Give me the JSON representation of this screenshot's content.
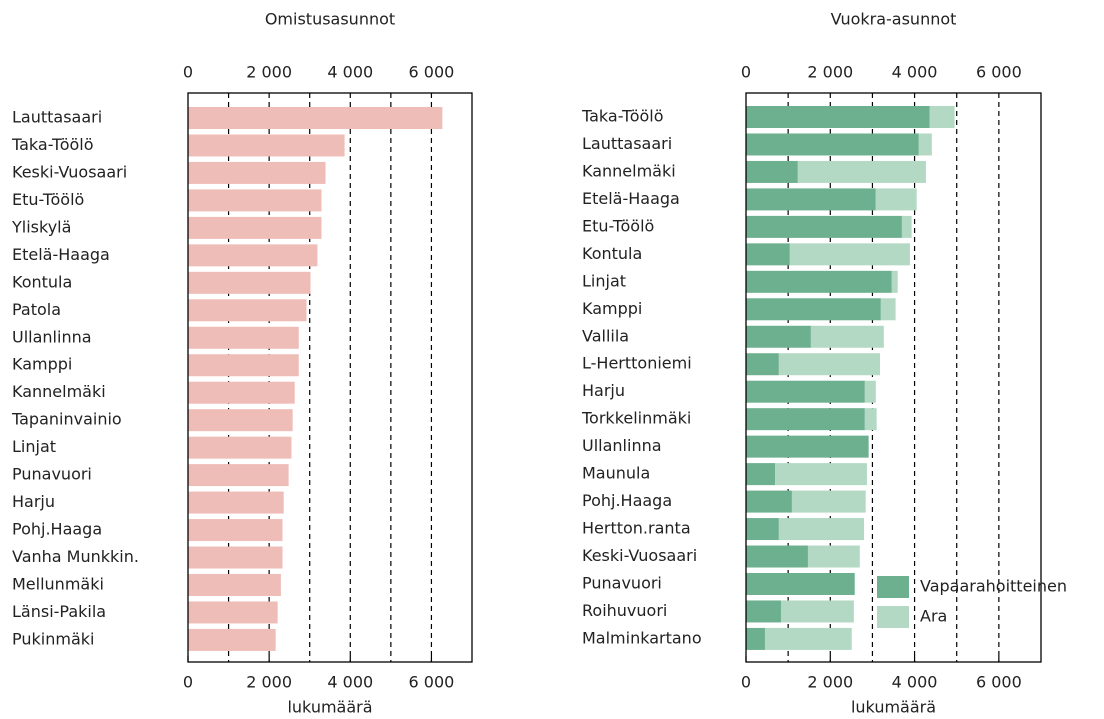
{
  "chart_data": [
    {
      "type": "bar",
      "orientation": "horizontal",
      "title": "Omistusasunnot",
      "xlabel": "lukumäärä",
      "categories": [
        "Lauttasaari",
        "Taka-Töölö",
        "Keski-Vuosaari",
        "Etu-Töölö",
        "Yliskylä",
        "Etelä-Haaga",
        "Kontula",
        "Patola",
        "Ullanlinna",
        "Kamppi",
        "Kannelmäki",
        "Tapaninvainio",
        "Linjat",
        "Punavuori",
        "Harju",
        "Pohj.Haaga",
        "Vanha Munkkin.",
        "Mellunmäki",
        "Länsi-Pakila",
        "Pukinmäki"
      ],
      "values": [
        6270,
        3860,
        3390,
        3290,
        3290,
        3190,
        3020,
        2920,
        2730,
        2730,
        2630,
        2580,
        2550,
        2480,
        2360,
        2330,
        2330,
        2290,
        2210,
        2160
      ],
      "color": "#efbdb8",
      "xlim": [
        0,
        7000
      ],
      "xticks": [
        0,
        {
          "value": 2000,
          "label": "2 000"
        },
        {
          "value": 4000,
          "label": "4 000"
        },
        {
          "value": 6000,
          "label": "6 000"
        }
      ],
      "minor_xticks": [
        1000,
        3000,
        5000
      ],
      "grid": true
    },
    {
      "type": "bar",
      "orientation": "horizontal",
      "stacked": true,
      "title": "Vuokra-asunnot",
      "xlabel": "lukumäärä",
      "categories": [
        "Taka-Töölö",
        "Lauttasaari",
        "Kannelmäki",
        "Etelä-Haaga",
        "Etu-Töölö",
        "Kontula",
        "Linjat",
        "Kamppi",
        "Vallila",
        "L-Herttoniemi",
        "Harju",
        "Torkkelinmäki",
        "Ullanlinna",
        "Maunula",
        "Pohj.Haaga",
        "Hertton.ranta",
        "Keski-Vuosaari",
        "Punavuori",
        "Roihuvuori",
        "Malminkartano"
      ],
      "series": [
        {
          "name": "Vapaarahoitteinen",
          "color": "#6db08f",
          "values": [
            4360,
            4100,
            1230,
            3080,
            3700,
            1040,
            3460,
            3200,
            1540,
            780,
            2820,
            2820,
            2910,
            690,
            1090,
            780,
            1470,
            2580,
            830,
            450
          ]
        },
        {
          "name": "Ara",
          "color": "#b3d9c5",
          "values": [
            590,
            310,
            3040,
            970,
            230,
            2850,
            140,
            350,
            1730,
            2400,
            260,
            280,
            0,
            2180,
            1750,
            2020,
            1230,
            0,
            1730,
            2060
          ]
        }
      ],
      "xlim": [
        0,
        7000
      ],
      "xticks": [
        0,
        {
          "value": 2000,
          "label": "2 000"
        },
        {
          "value": 4000,
          "label": "4 000"
        },
        {
          "value": 6000,
          "label": "6 000"
        }
      ],
      "minor_xticks": [
        1000,
        3000,
        5000
      ],
      "grid": true,
      "legend": "lower right"
    }
  ]
}
